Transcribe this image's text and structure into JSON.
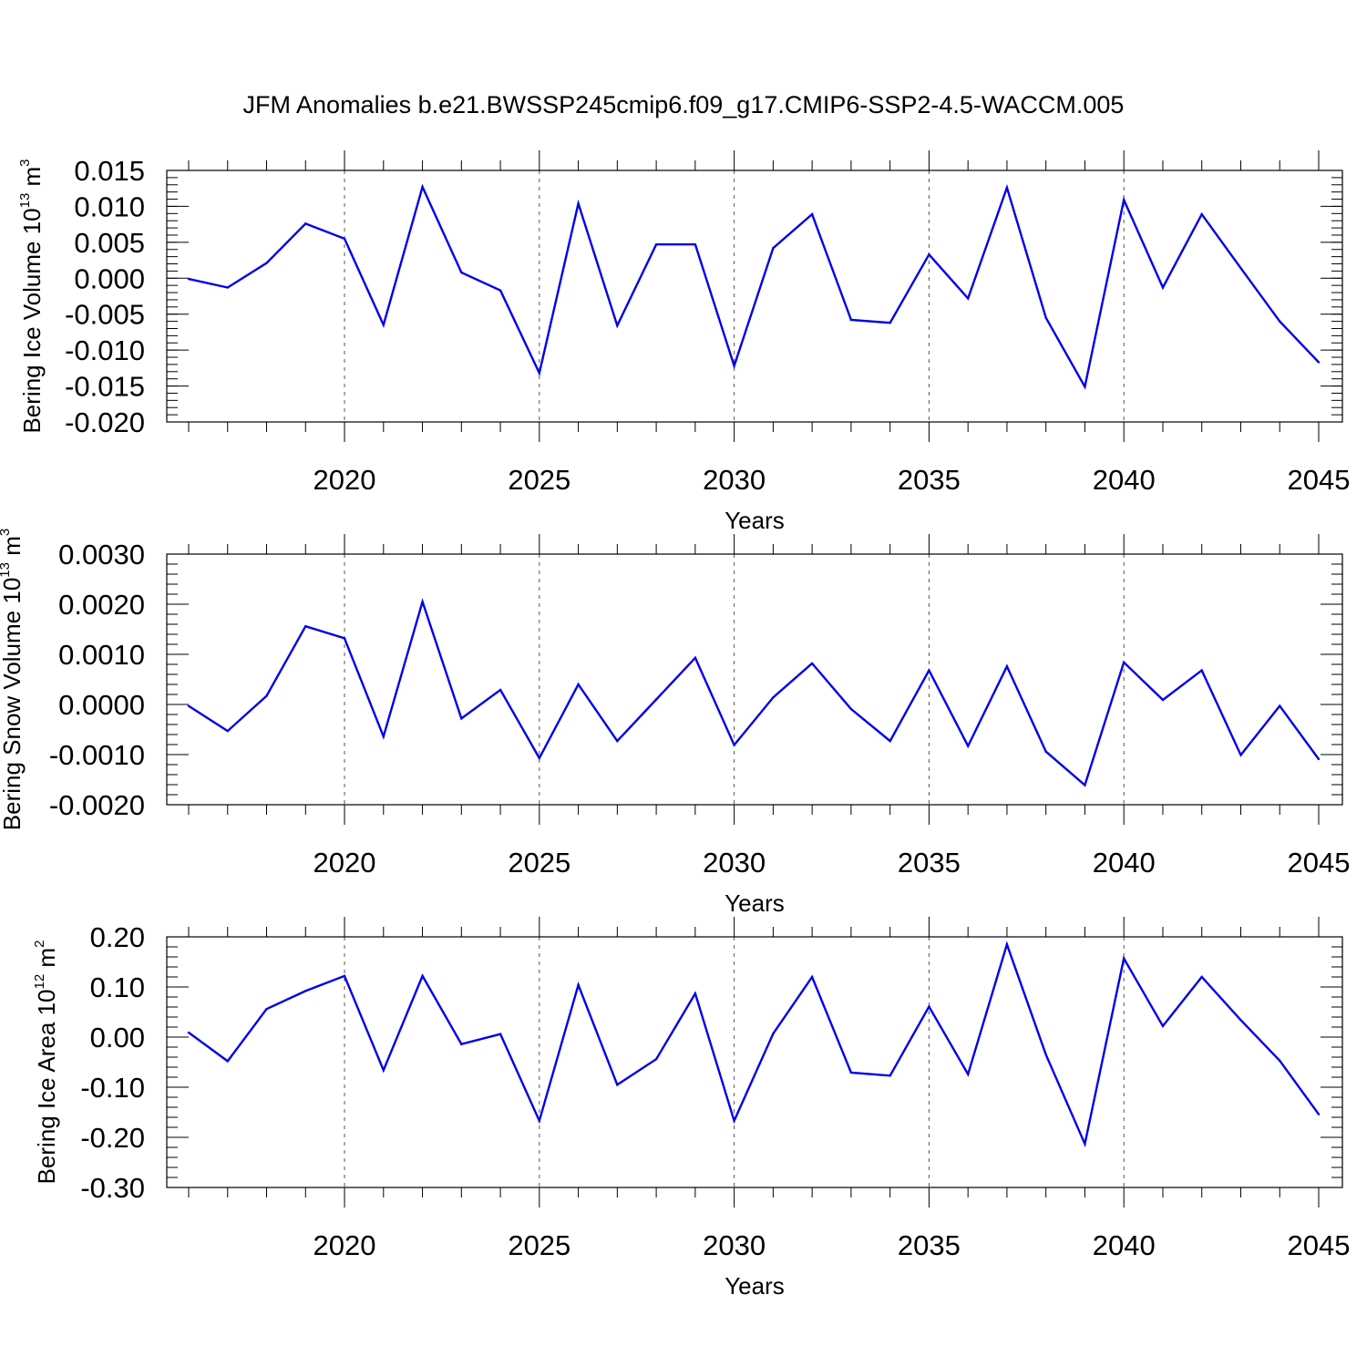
{
  "title": "JFM Anomalies b.e21.BWSSP245cmip6.f09_g17.CMIP6-SSP2-4.5-WACCM.005",
  "line_color": "#0000ee",
  "chart_data": [
    {
      "type": "line",
      "ylabel": {
        "text": "Bering Ice Volume 10",
        "exp": "13",
        "unit": " m",
        "unit_exp": "3"
      },
      "xlabel": "Years",
      "xlim": [
        2016,
        2045
      ],
      "ylim": [
        -0.02,
        0.015
      ],
      "x_major_ticks": [
        2020,
        2025,
        2030,
        2035,
        2040,
        2045
      ],
      "y_major_ticks": [
        -0.02,
        -0.015,
        -0.01,
        -0.005,
        0.0,
        0.005,
        0.01,
        0.015
      ],
      "y_tick_labels": [
        "-0.020",
        "-0.015",
        "-0.010",
        "-0.005",
        "0.000",
        "0.005",
        "0.010",
        "0.015"
      ],
      "y_minor_step": 0.001,
      "x": [
        2016,
        2017,
        2018,
        2019,
        2020,
        2021,
        2022,
        2023,
        2024,
        2025,
        2026,
        2027,
        2028,
        2029,
        2030,
        2031,
        2032,
        2033,
        2034,
        2035,
        2036,
        2037,
        2038,
        2039,
        2040,
        2041,
        2042,
        2043,
        2044,
        2045
      ],
      "values": [
        -0.0001,
        -0.0013,
        0.0021,
        0.0076,
        0.0055,
        -0.0065,
        0.0127,
        0.0008,
        -0.0017,
        -0.0132,
        0.0104,
        -0.0066,
        0.0047,
        0.0047,
        -0.0122,
        0.0042,
        0.0089,
        -0.0058,
        -0.0062,
        0.0033,
        -0.0028,
        0.0126,
        -0.0055,
        -0.0151,
        0.0109,
        -0.0013,
        0.0089,
        0.0014,
        -0.006,
        -0.0117
      ]
    },
    {
      "type": "line",
      "ylabel": {
        "text": "Bering Snow Volume 10",
        "exp": "13",
        "unit": " m",
        "unit_exp": "3"
      },
      "xlabel": "Years",
      "xlim": [
        2016,
        2045
      ],
      "ylim": [
        -0.002,
        0.003
      ],
      "x_major_ticks": [
        2020,
        2025,
        2030,
        2035,
        2040,
        2045
      ],
      "y_major_ticks": [
        -0.002,
        -0.001,
        0.0,
        0.001,
        0.002,
        0.003
      ],
      "y_tick_labels": [
        "-0.0020",
        "-0.0010",
        "0.0000",
        "0.0010",
        "0.0020",
        "0.0030"
      ],
      "y_minor_step": 0.0002,
      "x": [
        2016,
        2017,
        2018,
        2019,
        2020,
        2021,
        2022,
        2023,
        2024,
        2025,
        2026,
        2027,
        2028,
        2029,
        2030,
        2031,
        2032,
        2033,
        2034,
        2035,
        2036,
        2037,
        2038,
        2039,
        2040,
        2041,
        2042,
        2043,
        2044,
        2045
      ],
      "values": [
        -3e-05,
        -0.00053,
        0.00017,
        0.00156,
        0.00132,
        -0.00064,
        0.00205,
        -0.00028,
        0.00029,
        -0.00107,
        0.0004,
        -0.00073,
        0.0001,
        0.00093,
        -0.00081,
        0.00014,
        0.00082,
        -9e-05,
        -0.00073,
        0.00068,
        -0.00083,
        0.00076,
        -0.00094,
        -0.00161,
        0.00084,
        9e-05,
        0.00068,
        -0.00101,
        -3e-05,
        -0.00109
      ]
    },
    {
      "type": "line",
      "ylabel": {
        "text": "Bering Ice Area 10",
        "exp": "12",
        "unit": " m",
        "unit_exp": "2"
      },
      "xlabel": "Years",
      "xlim": [
        2016,
        2045
      ],
      "ylim": [
        -0.3,
        0.2
      ],
      "x_major_ticks": [
        2020,
        2025,
        2030,
        2035,
        2040,
        2045
      ],
      "y_major_ticks": [
        -0.3,
        -0.2,
        -0.1,
        0.0,
        0.1,
        0.2
      ],
      "y_tick_labels": [
        "-0.30",
        "-0.20",
        "-0.10",
        "0.00",
        "0.10",
        "0.20"
      ],
      "y_minor_step": 0.02,
      "x": [
        2016,
        2017,
        2018,
        2019,
        2020,
        2021,
        2022,
        2023,
        2024,
        2025,
        2026,
        2027,
        2028,
        2029,
        2030,
        2031,
        2032,
        2033,
        2034,
        2035,
        2036,
        2037,
        2038,
        2039,
        2040,
        2041,
        2042,
        2043,
        2044,
        2045
      ],
      "values": [
        0.009,
        -0.048,
        0.056,
        0.092,
        0.122,
        -0.066,
        0.122,
        -0.014,
        0.006,
        -0.167,
        0.104,
        -0.095,
        -0.044,
        0.087,
        -0.167,
        0.007,
        0.12,
        -0.071,
        -0.077,
        0.061,
        -0.074,
        0.185,
        -0.035,
        -0.213,
        0.157,
        0.022,
        0.12,
        0.034,
        -0.047,
        -0.154
      ]
    }
  ]
}
